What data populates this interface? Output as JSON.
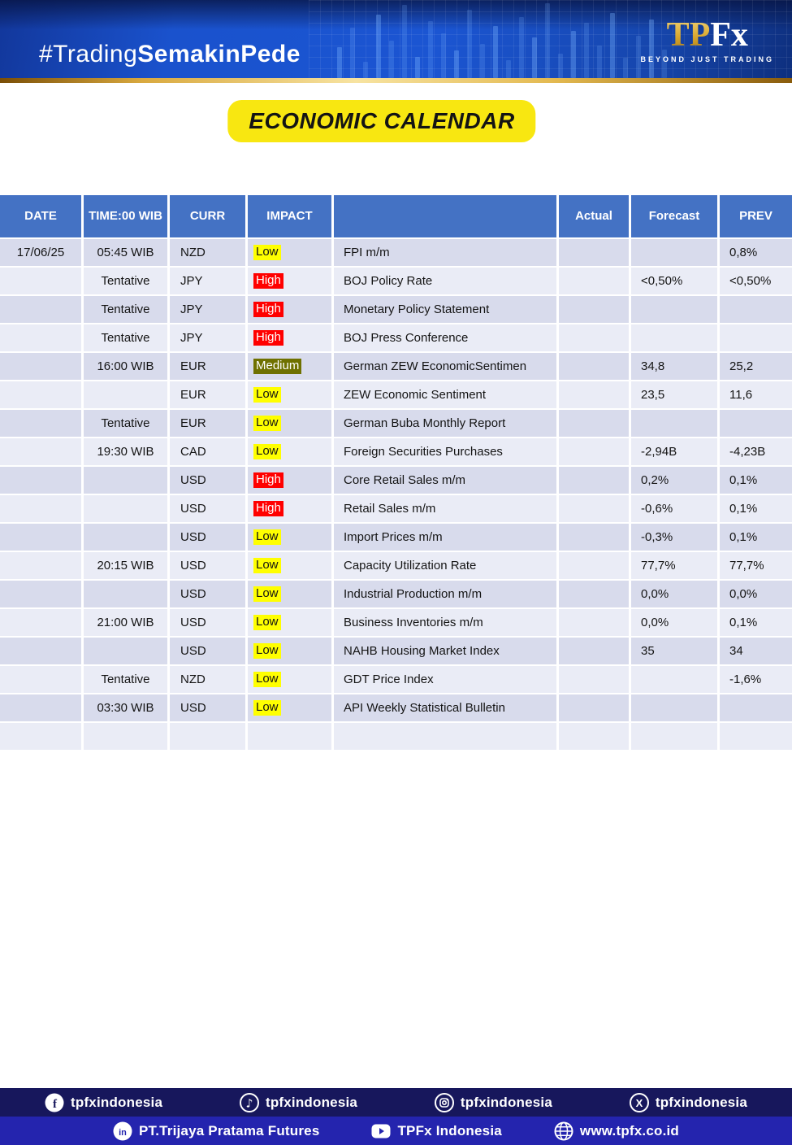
{
  "header": {
    "hashtag_regular": "#Trading",
    "hashtag_bold": "SemakinPede",
    "logo_gold": "TP",
    "logo_white": "Fx",
    "logo_tagline": "BEYOND JUST TRADING"
  },
  "title": "ECONOMIC CALENDAR",
  "table": {
    "headers": [
      "DATE",
      "TIME:00 WIB",
      "CURR",
      "IMPACT",
      "",
      "Actual",
      "Forecast",
      "PREV"
    ],
    "rows": [
      {
        "date": "17/06/25",
        "time": "05:45 WIB",
        "curr": "NZD",
        "impact": "Low",
        "event": "FPI m/m",
        "actual": "",
        "forecast": "",
        "prev": "0,8%"
      },
      {
        "date": "",
        "time": "Tentative",
        "curr": "JPY",
        "impact": "High",
        "event": "BOJ Policy Rate",
        "actual": "",
        "forecast": "<0,50%",
        "prev": "<0,50%"
      },
      {
        "date": "",
        "time": "Tentative",
        "curr": "JPY",
        "impact": "High",
        "event": "Monetary Policy Statement",
        "actual": "",
        "forecast": "",
        "prev": ""
      },
      {
        "date": "",
        "time": "Tentative",
        "curr": "JPY",
        "impact": "High",
        "event": "BOJ Press Conference",
        "actual": "",
        "forecast": "",
        "prev": ""
      },
      {
        "date": "",
        "time": "16:00 WIB",
        "curr": "EUR",
        "impact": "Medium",
        "event": "German ZEW EconomicSentimen",
        "actual": "",
        "forecast": "34,8",
        "prev": "25,2"
      },
      {
        "date": "",
        "time": "",
        "curr": "EUR",
        "impact": "Low",
        "event": "ZEW Economic Sentiment",
        "actual": "",
        "forecast": "23,5",
        "prev": "11,6"
      },
      {
        "date": "",
        "time": "Tentative",
        "curr": "EUR",
        "impact": "Low",
        "event": "German Buba Monthly Report",
        "actual": "",
        "forecast": "",
        "prev": ""
      },
      {
        "date": "",
        "time": "19:30 WIB",
        "curr": "CAD",
        "impact": "Low",
        "event": "Foreign Securities Purchases",
        "actual": "",
        "forecast": "-2,94B",
        "prev": "-4,23B"
      },
      {
        "date": "",
        "time": "",
        "curr": "USD",
        "impact": "High",
        "event": "Core Retail Sales m/m",
        "actual": "",
        "forecast": "0,2%",
        "prev": "0,1%"
      },
      {
        "date": "",
        "time": "",
        "curr": "USD",
        "impact": "High",
        "event": "Retail Sales m/m",
        "actual": "",
        "forecast": "-0,6%",
        "prev": "0,1%"
      },
      {
        "date": "",
        "time": "",
        "curr": "USD",
        "impact": "Low",
        "event": "Import Prices m/m",
        "actual": "",
        "forecast": "-0,3%",
        "prev": "0,1%"
      },
      {
        "date": "",
        "time": "20:15 WIB",
        "curr": "USD",
        "impact": "Low",
        "event": "Capacity Utilization Rate",
        "actual": "",
        "forecast": "77,7%",
        "prev": "77,7%"
      },
      {
        "date": "",
        "time": "",
        "curr": "USD",
        "impact": "Low",
        "event": "Industrial Production m/m",
        "actual": "",
        "forecast": "0,0%",
        "prev": "0,0%"
      },
      {
        "date": "",
        "time": "21:00 WIB",
        "curr": "USD",
        "impact": "Low",
        "event": "Business Inventories m/m",
        "actual": "",
        "forecast": "0,0%",
        "prev": "0,1%"
      },
      {
        "date": "",
        "time": "",
        "curr": "USD",
        "impact": "Low",
        "event": "NAHB Housing Market Index",
        "actual": "",
        "forecast": "35",
        "prev": "34"
      },
      {
        "date": "",
        "time": "Tentative",
        "curr": "NZD",
        "impact": "Low",
        "event": "GDT Price Index",
        "actual": "",
        "forecast": "",
        "prev": "-1,6%"
      },
      {
        "date": "",
        "time": "03:30 WIB",
        "curr": "USD",
        "impact": "Low",
        "event": "API Weekly Statistical Bulletin",
        "actual": "",
        "forecast": "",
        "prev": ""
      },
      {
        "date": "",
        "time": "",
        "curr": "",
        "impact": "",
        "event": "",
        "actual": "",
        "forecast": "",
        "prev": ""
      }
    ]
  },
  "footer": {
    "social": [
      {
        "network": "facebook",
        "handle": "tpfxindonesia"
      },
      {
        "network": "tiktok",
        "handle": "tpfxindonesia"
      },
      {
        "network": "instagram",
        "handle": "tpfxindonesia"
      },
      {
        "network": "x",
        "handle": "tpfxindonesia"
      }
    ],
    "company": [
      {
        "network": "linkedin",
        "label": "PT.Trijaya Pratama Futures"
      },
      {
        "network": "youtube",
        "label": "TPFx Indonesia"
      },
      {
        "network": "globe",
        "label": "www.tpfx.co.id"
      }
    ]
  },
  "colors": {
    "header_bg": "#4472c4",
    "row_odd": "#d8dbec",
    "row_even": "#eaecf6",
    "low_bg": "#ffff00",
    "low_text": "#141414",
    "medium_bg": "#6f7100",
    "medium_text": "#ffffff",
    "high_bg": "#ff0000",
    "high_text": "#ffffff",
    "footer_row1_bg": "#17175c",
    "footer_row2_bg": "#2424ae",
    "banner_gold": "#d8a72e",
    "title_badge_bg": "#f8e711"
  }
}
